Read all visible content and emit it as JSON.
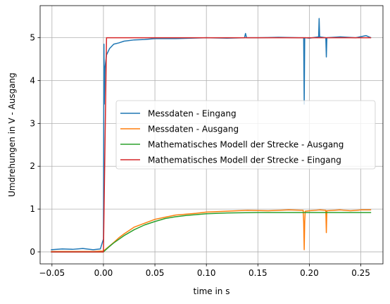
{
  "chart_data": {
    "type": "line",
    "title": "",
    "xlabel": "time in s",
    "ylabel": "Umdrehungen in V - Ausgang",
    "xlim": [
      -0.0615,
      0.2715
    ],
    "ylim": [
      -0.28,
      5.75
    ],
    "xticks": [
      -0.05,
      0.0,
      0.05,
      0.1,
      0.15,
      0.2,
      0.25
    ],
    "xtick_labels": [
      "−0.05",
      "0.00",
      "0.05",
      "0.10",
      "0.15",
      "0.20",
      "0.25"
    ],
    "yticks": [
      0,
      1,
      2,
      3,
      4,
      5
    ],
    "ytick_labels": [
      "0",
      "1",
      "2",
      "3",
      "4",
      "5"
    ],
    "grid": true,
    "legend_position": "center-right",
    "series": [
      {
        "name": "Messdaten - Eingang",
        "color": "#1f77b4",
        "x": [
          -0.051,
          -0.04,
          -0.03,
          -0.02,
          -0.01,
          -0.003,
          0.0,
          0.0005,
          0.0008,
          0.0015,
          0.003,
          0.006,
          0.01,
          0.015,
          0.02,
          0.03,
          0.04,
          0.05,
          0.07,
          0.1,
          0.12,
          0.137,
          0.138,
          0.139,
          0.15,
          0.17,
          0.19,
          0.1945,
          0.195,
          0.1955,
          0.196,
          0.2,
          0.209,
          0.2095,
          0.21,
          0.216,
          0.2165,
          0.217,
          0.23,
          0.245,
          0.255,
          0.26
        ],
        "y": [
          0.05,
          0.07,
          0.06,
          0.08,
          0.05,
          0.07,
          0.3,
          4.85,
          3.45,
          4.3,
          4.6,
          4.75,
          4.85,
          4.88,
          4.92,
          4.95,
          4.96,
          4.98,
          4.98,
          5.0,
          4.99,
          5.0,
          5.1,
          5.0,
          5.0,
          5.01,
          5.0,
          5.0,
          3.45,
          5.0,
          5.0,
          4.99,
          5.02,
          5.45,
          5.02,
          5.0,
          4.55,
          5.0,
          5.02,
          5.0,
          5.05,
          5.0
        ]
      },
      {
        "name": "Messdaten - Ausgang",
        "color": "#ff7f0e",
        "x": [
          -0.051,
          -0.03,
          -0.01,
          0.0,
          0.005,
          0.01,
          0.015,
          0.02,
          0.025,
          0.03,
          0.04,
          0.05,
          0.06,
          0.07,
          0.08,
          0.09,
          0.1,
          0.12,
          0.14,
          0.16,
          0.18,
          0.194,
          0.1945,
          0.195,
          0.1955,
          0.196,
          0.2,
          0.21,
          0.216,
          0.2165,
          0.217,
          0.23,
          0.24,
          0.25,
          0.26
        ],
        "y": [
          0.01,
          0.01,
          0.01,
          0.02,
          0.12,
          0.22,
          0.33,
          0.42,
          0.5,
          0.58,
          0.67,
          0.76,
          0.81,
          0.86,
          0.88,
          0.9,
          0.93,
          0.95,
          0.97,
          0.96,
          0.98,
          0.97,
          0.7,
          0.05,
          0.7,
          0.95,
          0.96,
          0.98,
          0.97,
          0.45,
          0.96,
          0.98,
          0.96,
          0.98,
          0.98
        ]
      },
      {
        "name": "Mathematisches Modell der Strecke - Ausgang",
        "color": "#2ca02c",
        "x": [
          -0.051,
          0.0,
          0.005,
          0.01,
          0.02,
          0.03,
          0.04,
          0.05,
          0.06,
          0.07,
          0.08,
          0.1,
          0.12,
          0.15,
          0.2,
          0.25,
          0.26
        ],
        "y": [
          0.0,
          0.0,
          0.11,
          0.21,
          0.38,
          0.52,
          0.63,
          0.71,
          0.78,
          0.82,
          0.85,
          0.89,
          0.91,
          0.92,
          0.92,
          0.92,
          0.92
        ]
      },
      {
        "name": "Mathematisches Modell der Strecke - Eingang",
        "color": "#d62728",
        "x": [
          -0.051,
          0.0,
          0.003,
          0.26
        ],
        "y": [
          0.0,
          0.0,
          5.0,
          5.0
        ]
      }
    ]
  }
}
